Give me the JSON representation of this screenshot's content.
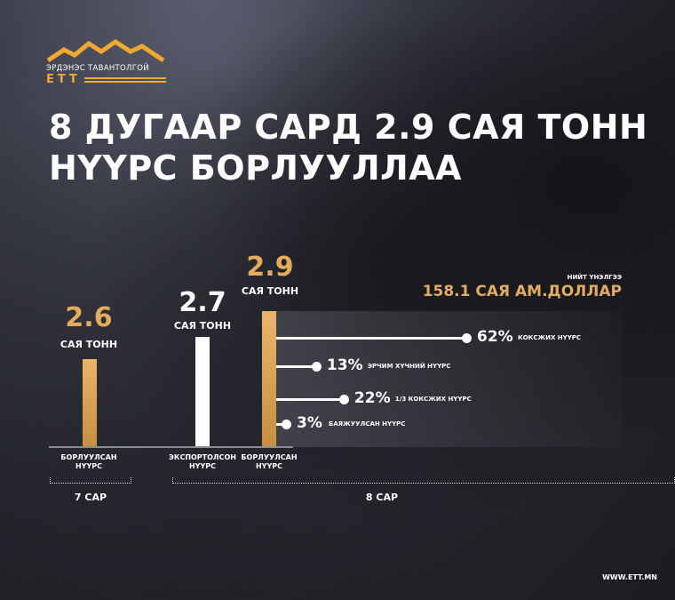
{
  "logo": {
    "text": "ЭРДЭНЭС ТАВАНТОЛГОЙ",
    "abbr": "ETT"
  },
  "title": {
    "line1": "8 ДУГААР САРД 2.9 САЯ ТОНН",
    "line2": "НҮҮРС БОРЛУУЛЛАА"
  },
  "total": {
    "label": "НИЙТ ҮНЭЛГЭЭ",
    "value": "158.1 САЯ АМ.ДОЛЛАР"
  },
  "chart_data": {
    "type": "bar",
    "unit": "САЯ ТОНН",
    "bars": [
      {
        "value": "2.6",
        "label": "БОРЛУУЛСАН НҮҮРС",
        "period": "7 САР",
        "color": "#e3ac5c"
      },
      {
        "value": "2.7",
        "label": "ЭКСПОРТОЛСОН НҮҮРС",
        "period": "8 САР",
        "color": "#ffffff"
      },
      {
        "value": "2.9",
        "label": "БОРЛУУЛСАН НҮҮРС",
        "period": "8 САР",
        "color": "#e3ac5c"
      }
    ],
    "breakdown": [
      {
        "percent": "62%",
        "value": 62,
        "label": "КОКСЖИХ НҮҮРС"
      },
      {
        "percent": "13%",
        "value": 13,
        "label": "ЭРЧИМ ХҮЧНИЙ НҮҮРС"
      },
      {
        "percent": "22%",
        "value": 22,
        "label": "1/3 КОКСЖИХ НҮҮРС"
      },
      {
        "percent": "3%",
        "value": 3,
        "label": "БАЯЖУУЛСАН НҮҮРС"
      }
    ],
    "periods": [
      "7 САР",
      "8 САР"
    ]
  },
  "footer": {
    "url": "WWW.ETT.MN"
  }
}
